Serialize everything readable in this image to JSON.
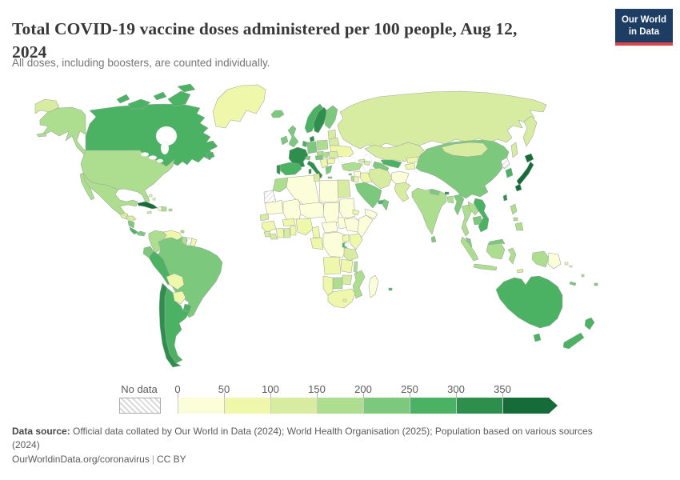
{
  "header": {
    "title_line1": "Total COVID-19 vaccine doses administered per 100 people, Aug 12,",
    "title_line2": "2024",
    "subtitle": "All doses, including boosters, are counted individually.",
    "logo": {
      "line1": "Our World",
      "line2": "in Data",
      "bg_color": "#1d3d63",
      "accent_color": "#d8454f"
    }
  },
  "legend": {
    "no_data_label": "No data",
    "ticks": [
      "0",
      "50",
      "100",
      "150",
      "200",
      "250",
      "300",
      "350"
    ]
  },
  "footer": {
    "source_label": "Data source:",
    "source_text_line1": " Official data collated by Our World in Data (2024); World Health Organisation (2025); Population based on various sources",
    "source_text_line2": "(2024)",
    "link": "OurWorldinData.org/coronavirus",
    "separator": "|",
    "license": "CC BY"
  },
  "chart_data": {
    "type": "choropleth_map",
    "title": "Total COVID-19 vaccine doses administered per 100 people",
    "date": "Aug 12, 2024",
    "unit": "doses per 100 people",
    "legend_position": "bottom",
    "no_data_style": "hatched",
    "legend_buckets": [
      {
        "range": "0-50",
        "color": "#fcfdd9"
      },
      {
        "range": "50-100",
        "color": "#eff7ab"
      },
      {
        "range": "100-150",
        "color": "#d7eca0"
      },
      {
        "range": "150-200",
        "color": "#addd8e"
      },
      {
        "range": "200-250",
        "color": "#7cc87d"
      },
      {
        "range": "250-300",
        "color": "#4bb264"
      },
      {
        "range": "300-350",
        "color": "#2e8f4d"
      },
      {
        "range": "350+",
        "color": "#156c38"
      }
    ],
    "countries": [
      {
        "id": "canada",
        "name": "Canada",
        "bucket": "250-300"
      },
      {
        "id": "usa",
        "name": "United States",
        "bucket": "150-200"
      },
      {
        "id": "greenland",
        "name": "Greenland",
        "bucket": "50-100"
      },
      {
        "id": "mexico",
        "name": "Mexico",
        "bucket": "150-200"
      },
      {
        "id": "guatemala",
        "name": "Guatemala",
        "bucket": "100-150"
      },
      {
        "id": "honduras",
        "name": "Honduras",
        "bucket": "100-150"
      },
      {
        "id": "nicaragua",
        "name": "Nicaragua",
        "bucket": "200-250"
      },
      {
        "id": "costa-rica",
        "name": "Costa Rica",
        "bucket": "250-300"
      },
      {
        "id": "panama",
        "name": "Panama",
        "bucket": "200-250"
      },
      {
        "id": "cuba",
        "name": "Cuba",
        "bucket": "350+"
      },
      {
        "id": "jamaica",
        "name": "Jamaica",
        "bucket": "100-150"
      },
      {
        "id": "haiti",
        "name": "Haiti",
        "bucket": "0-50"
      },
      {
        "id": "dominican-republic",
        "name": "Dominican Republic",
        "bucket": "150-200"
      },
      {
        "id": "puerto-rico",
        "name": "Puerto Rico",
        "bucket": "150-200"
      },
      {
        "id": "bahamas",
        "name": "Bahamas",
        "bucket": "50-100"
      },
      {
        "id": "trinidad-and-tobago",
        "name": "Trinidad and Tobago",
        "bucket": "150-200"
      },
      {
        "id": "colombia",
        "name": "Colombia",
        "bucket": "150-200"
      },
      {
        "id": "venezuela",
        "name": "Venezuela",
        "bucket": "50-100"
      },
      {
        "id": "guyana",
        "name": "Guyana",
        "bucket": "150-200"
      },
      {
        "id": "suriname",
        "name": "Suriname",
        "bucket": "No data"
      },
      {
        "id": "french-guiana",
        "name": "French Guiana",
        "bucket": "50-100"
      },
      {
        "id": "ecuador",
        "name": "Ecuador",
        "bucket": "200-250"
      },
      {
        "id": "peru",
        "name": "Peru",
        "bucket": "250-300"
      },
      {
        "id": "brazil",
        "name": "Brazil",
        "bucket": "200-250"
      },
      {
        "id": "bolivia",
        "name": "Bolivia",
        "bucket": "50-100"
      },
      {
        "id": "paraguay",
        "name": "Paraguay",
        "bucket": "50-100"
      },
      {
        "id": "uruguay",
        "name": "Uruguay",
        "bucket": "250-300"
      },
      {
        "id": "argentina",
        "name": "Argentina",
        "bucket": "250-300"
      },
      {
        "id": "chile",
        "name": "Chile",
        "bucket": "300-350"
      },
      {
        "id": "iceland",
        "name": "Iceland",
        "bucket": "200-250"
      },
      {
        "id": "ireland",
        "name": "Ireland",
        "bucket": "200-250"
      },
      {
        "id": "united-kingdom",
        "name": "United Kingdom",
        "bucket": "200-250"
      },
      {
        "id": "norway",
        "name": "Norway",
        "bucket": "250-300"
      },
      {
        "id": "sweden",
        "name": "Sweden",
        "bucket": "300-350"
      },
      {
        "id": "finland",
        "name": "Finland",
        "bucket": "200-250"
      },
      {
        "id": "denmark",
        "name": "Denmark",
        "bucket": "300-350"
      },
      {
        "id": "baltics",
        "name": "Baltic states",
        "bucket": "100-150"
      },
      {
        "id": "belarus",
        "name": "Belarus",
        "bucket": "100-150"
      },
      {
        "id": "ukraine",
        "name": "Ukraine",
        "bucket": "50-100"
      },
      {
        "id": "poland",
        "name": "Poland",
        "bucket": "150-200"
      },
      {
        "id": "germany",
        "name": "Germany",
        "bucket": "200-250"
      },
      {
        "id": "benelux",
        "name": "Belgium / Netherlands",
        "bucket": "250-300"
      },
      {
        "id": "france",
        "name": "France",
        "bucket": "300-350"
      },
      {
        "id": "switzerland",
        "name": "Switzerland",
        "bucket": "200-250"
      },
      {
        "id": "czechia",
        "name": "Czechia",
        "bucket": "150-200"
      },
      {
        "id": "austria",
        "name": "Austria",
        "bucket": "200-250"
      },
      {
        "id": "hungary",
        "name": "Hungary",
        "bucket": "150-200"
      },
      {
        "id": "romania",
        "name": "Romania",
        "bucket": "100-150"
      },
      {
        "id": "balkans",
        "name": "Western Balkans",
        "bucket": "50-100"
      },
      {
        "id": "bulgaria",
        "name": "Bulgaria",
        "bucket": "50-100"
      },
      {
        "id": "greece",
        "name": "Greece",
        "bucket": "200-250"
      },
      {
        "id": "italy",
        "name": "Italy",
        "bucket": "300-350"
      },
      {
        "id": "spain",
        "name": "Spain",
        "bucket": "250-300"
      },
      {
        "id": "portugal",
        "name": "Portugal",
        "bucket": "300-350"
      },
      {
        "id": "russia",
        "name": "Russia",
        "bucket": "100-150"
      },
      {
        "id": "kazakhstan",
        "name": "Kazakhstan",
        "bucket": "100-150"
      },
      {
        "id": "uzbekistan",
        "name": "Uzbekistan",
        "bucket": "250-300"
      },
      {
        "id": "turkmenistan",
        "name": "Turkmenistan",
        "bucket": "200-250"
      },
      {
        "id": "kyrgyzstan",
        "name": "Kyrgyzstan",
        "bucket": "50-100"
      },
      {
        "id": "tajikistan",
        "name": "Tajikistan",
        "bucket": "50-100"
      },
      {
        "id": "georgia",
        "name": "Georgia",
        "bucket": "100-150"
      },
      {
        "id": "azerbaijan",
        "name": "Azerbaijan",
        "bucket": "100-150"
      },
      {
        "id": "turkey",
        "name": "Turkey",
        "bucket": "150-200"
      },
      {
        "id": "cyprus",
        "name": "Cyprus",
        "bucket": "200-250"
      },
      {
        "id": "syria",
        "name": "Syria",
        "bucket": "0-50"
      },
      {
        "id": "israel",
        "name": "Israel",
        "bucket": "150-200"
      },
      {
        "id": "jordan",
        "name": "Jordan",
        "bucket": "50-100"
      },
      {
        "id": "iraq",
        "name": "Iraq",
        "bucket": "50-100"
      },
      {
        "id": "iran",
        "name": "Iran",
        "bucket": "100-150"
      },
      {
        "id": "afghanistan",
        "name": "Afghanistan",
        "bucket": "0-50"
      },
      {
        "id": "pakistan",
        "name": "Pakistan",
        "bucket": "100-150"
      },
      {
        "id": "saudi-arabia",
        "name": "Saudi Arabia",
        "bucket": "200-250"
      },
      {
        "id": "uae",
        "name": "United Arab Emirates",
        "bucket": "250-300"
      },
      {
        "id": "oman",
        "name": "Oman",
        "bucket": "200-250"
      },
      {
        "id": "yemen",
        "name": "Yemen",
        "bucket": "0-50"
      },
      {
        "id": "india",
        "name": "India",
        "bucket": "150-200"
      },
      {
        "id": "nepal",
        "name": "Nepal",
        "bucket": "200-250"
      },
      {
        "id": "bhutan",
        "name": "Bhutan",
        "bucket": "300-350"
      },
      {
        "id": "bangladesh",
        "name": "Bangladesh",
        "bucket": "150-200"
      },
      {
        "id": "sri-lanka",
        "name": "Sri Lanka",
        "bucket": "200-250"
      },
      {
        "id": "myanmar",
        "name": "Myanmar",
        "bucket": "200-250"
      },
      {
        "id": "thailand",
        "name": "Thailand",
        "bucket": "150-200"
      },
      {
        "id": "laos",
        "name": "Laos",
        "bucket": "150-200"
      },
      {
        "id": "cambodia",
        "name": "Cambodia",
        "bucket": "200-250"
      },
      {
        "id": "vietnam",
        "name": "Vietnam",
        "bucket": "250-300"
      },
      {
        "id": "malaysia",
        "name": "Malaysia",
        "bucket": "200-250"
      },
      {
        "id": "china",
        "name": "China",
        "bucket": "200-250"
      },
      {
        "id": "mongolia",
        "name": "Mongolia",
        "bucket": "100-150"
      },
      {
        "id": "north-korea",
        "name": "North Korea",
        "bucket": "No data"
      },
      {
        "id": "south-korea",
        "name": "South Korea",
        "bucket": "250-300"
      },
      {
        "id": "japan",
        "name": "Japan",
        "bucket": "350+"
      },
      {
        "id": "taiwan",
        "name": "Taiwan",
        "bucket": "300-350"
      },
      {
        "id": "philippines",
        "name": "Philippines",
        "bucket": "150-200"
      },
      {
        "id": "indonesia",
        "name": "Indonesia",
        "bucket": "150-200"
      },
      {
        "id": "timor-leste",
        "name": "Timor-Leste",
        "bucket": "100-150"
      },
      {
        "id": "egypt",
        "name": "Egypt",
        "bucket": "100-150"
      },
      {
        "id": "libya",
        "name": "Libya",
        "bucket": "0-50"
      },
      {
        "id": "tunisia",
        "name": "Tunisia",
        "bucket": "100-150"
      },
      {
        "id": "algeria",
        "name": "Algeria",
        "bucket": "0-50"
      },
      {
        "id": "morocco",
        "name": "Morocco",
        "bucket": "150-200"
      },
      {
        "id": "western-sahara",
        "name": "Western Sahara",
        "bucket": "No data"
      },
      {
        "id": "mauritania",
        "name": "Mauritania",
        "bucket": "0-50"
      },
      {
        "id": "mali",
        "name": "Mali",
        "bucket": "0-50"
      },
      {
        "id": "senegal",
        "name": "Senegal",
        "bucket": "100-150"
      },
      {
        "id": "guinea",
        "name": "Guinea",
        "bucket": "50-100"
      },
      {
        "id": "sierra-leone",
        "name": "Sierra Leone",
        "bucket": "100-150"
      },
      {
        "id": "liberia",
        "name": "Liberia",
        "bucket": "100-150"
      },
      {
        "id": "cote-divoire",
        "name": "Cote d'Ivoire",
        "bucket": "50-100"
      },
      {
        "id": "ghana",
        "name": "Ghana",
        "bucket": "100-150"
      },
      {
        "id": "togo-benin",
        "name": "Togo / Benin",
        "bucket": "50-100"
      },
      {
        "id": "burkina-faso",
        "name": "Burkina Faso",
        "bucket": "50-100"
      },
      {
        "id": "niger",
        "name": "Niger",
        "bucket": "0-50"
      },
      {
        "id": "nigeria",
        "name": "Nigeria",
        "bucket": "50-100"
      },
      {
        "id": "chad",
        "name": "Chad",
        "bucket": "0-50"
      },
      {
        "id": "sudan",
        "name": "Sudan",
        "bucket": "0-50"
      },
      {
        "id": "eritrea",
        "name": "Eritrea",
        "bucket": "50-100"
      },
      {
        "id": "ethiopia",
        "name": "Ethiopia",
        "bucket": "0-50"
      },
      {
        "id": "somalia",
        "name": "Somalia",
        "bucket": "0-50"
      },
      {
        "id": "south-sudan",
        "name": "South Sudan",
        "bucket": "0-50"
      },
      {
        "id": "central-african-republic",
        "name": "Central African Republic",
        "bucket": "0-50"
      },
      {
        "id": "cameroon",
        "name": "Cameroon",
        "bucket": "50-100"
      },
      {
        "id": "gabon-congo",
        "name": "Gabon / Congo",
        "bucket": "50-100"
      },
      {
        "id": "dr-congo",
        "name": "Democratic Republic of Congo",
        "bucket": "0-50"
      },
      {
        "id": "uganda",
        "name": "Uganda",
        "bucket": "50-100"
      },
      {
        "id": "kenya",
        "name": "Kenya",
        "bucket": "50-100"
      },
      {
        "id": "rwanda",
        "name": "Rwanda",
        "bucket": "250-300"
      },
      {
        "id": "tanzania",
        "name": "Tanzania",
        "bucket": "100-150"
      },
      {
        "id": "angola",
        "name": "Angola",
        "bucket": "50-100"
      },
      {
        "id": "zambia",
        "name": "Zambia",
        "bucket": "50-100"
      },
      {
        "id": "malawi",
        "name": "Malawi",
        "bucket": "150-200"
      },
      {
        "id": "mozambique",
        "name": "Mozambique",
        "bucket": "150-200"
      },
      {
        "id": "zimbabwe",
        "name": "Zimbabwe",
        "bucket": "100-150"
      },
      {
        "id": "botswana",
        "name": "Botswana",
        "bucket": "150-200"
      },
      {
        "id": "namibia",
        "name": "Namibia",
        "bucket": "50-100"
      },
      {
        "id": "south-africa",
        "name": "South Africa",
        "bucket": "50-100"
      },
      {
        "id": "lesotho",
        "name": "Lesotho",
        "bucket": "50-100"
      },
      {
        "id": "madagascar",
        "name": "Madagascar",
        "bucket": "0-50"
      },
      {
        "id": "mauritius",
        "name": "Mauritius",
        "bucket": "250-300"
      },
      {
        "id": "australia",
        "name": "Australia",
        "bucket": "250-300"
      },
      {
        "id": "new-zealand",
        "name": "New Zealand",
        "bucket": "250-300"
      },
      {
        "id": "papua-new-guinea",
        "name": "Papua New Guinea",
        "bucket": "0-50"
      },
      {
        "id": "fiji",
        "name": "Fiji",
        "bucket": "200-250"
      },
      {
        "id": "new-caledonia",
        "name": "New Caledonia",
        "bucket": "200-250"
      },
      {
        "id": "vanuatu",
        "name": "Vanuatu",
        "bucket": "150-200"
      },
      {
        "id": "solomon-islands",
        "name": "Solomon Islands",
        "bucket": "50-100"
      }
    ]
  }
}
